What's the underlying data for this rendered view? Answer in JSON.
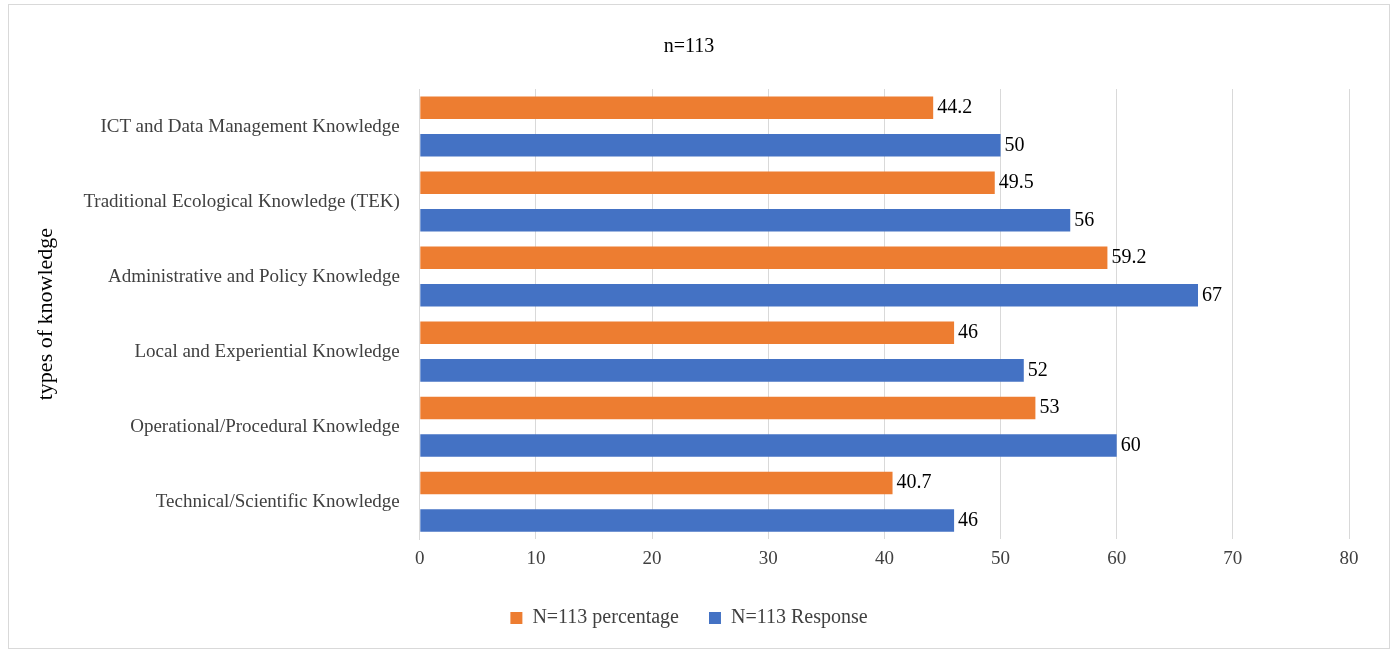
{
  "chart_data": {
    "type": "bar",
    "orientation": "horizontal",
    "title": "n=113",
    "ylabel": "types of knowledge",
    "categories": [
      "ICT and Data Management Knowledge",
      "Traditional Ecological Knowledge (TEK)",
      "Administrative and Policy Knowledge",
      "Local and Experiential Knowledge",
      "Operational/Procedural Knowledge",
      "Technical/Scientific Knowledge"
    ],
    "series": [
      {
        "name": "N=113 percentage",
        "color": "#ed7d31",
        "values": [
          44.2,
          49.5,
          59.2,
          46,
          53,
          40.7
        ]
      },
      {
        "name": "N=113 Response",
        "color": "#4472c4",
        "values": [
          50,
          56,
          67,
          52,
          60,
          46
        ]
      }
    ],
    "xlim": [
      0,
      80
    ],
    "xticks": [
      0,
      10,
      20,
      30,
      40,
      50,
      60,
      70,
      80
    ],
    "grid": "x",
    "legend": "bottom",
    "data_labels": true
  }
}
